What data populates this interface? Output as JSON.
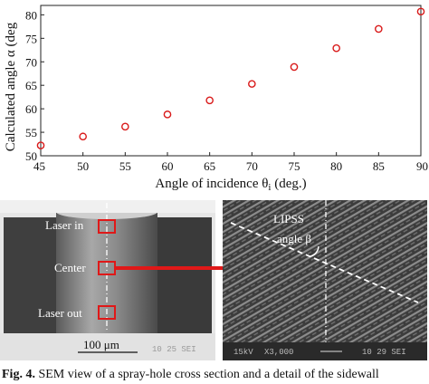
{
  "chart_data": {
    "type": "scatter",
    "xlabel_main": "Angle of incidence θ",
    "xlabel_sub": "i",
    "xlabel_tail": " (deg.)",
    "ylabel": "Calculated angle α (deg",
    "xlim": [
      45,
      90
    ],
    "ylim": [
      50,
      82
    ],
    "xticks": [
      "45",
      "50",
      "55",
      "60",
      "65",
      "70",
      "75",
      "80",
      "85",
      "90"
    ],
    "yticks": [
      "50",
      "55",
      "60",
      "65",
      "70",
      "75",
      "80"
    ],
    "x": [
      45,
      50,
      55,
      60,
      65,
      70,
      75,
      80,
      85,
      90
    ],
    "y": [
      52.2,
      54.1,
      56.2,
      58.8,
      61.8,
      65.3,
      68.9,
      72.9,
      77.0,
      80.7
    ],
    "marker_color": "#d91a1a",
    "grid": false
  },
  "sem_left": {
    "labels": [
      "Laser in",
      "Center",
      "Laser out"
    ],
    "scale_bar": "100 μm",
    "info": "10 25 SEI"
  },
  "sem_right": {
    "label_line1": "LIPSS",
    "label_line2": "angle β",
    "info_left": "15kV",
    "info_mid": "X3,000",
    "info_right": "10 29 SEI"
  },
  "arrow_color": "#e01818",
  "caption": {
    "fig": "Fig. 4.",
    "text": " SEM view of a spray-hole cross section and a detail of the sidewall"
  }
}
